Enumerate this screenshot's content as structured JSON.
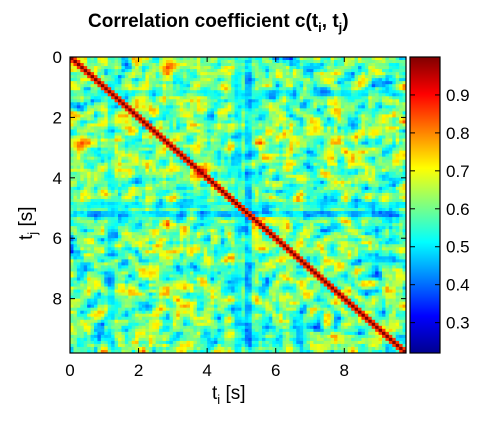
{
  "chart_data": {
    "type": "heatmap",
    "title": "Correlation coefficient c(t",
    "title_sub_1": "i",
    "title_mid": ", t",
    "title_sub_2": "j",
    "title_end": ")",
    "xlabel": "t",
    "xlabel_sub": "i",
    "xlabel_unit": " [s]",
    "ylabel": "t",
    "ylabel_sub": "j",
    "ylabel_unit": " [s]",
    "xlim": [
      0,
      9.8
    ],
    "ylim": [
      0,
      9.8
    ],
    "x_ticks": [
      0,
      2,
      4,
      6,
      8
    ],
    "y_ticks": [
      0,
      2,
      4,
      6,
      8
    ],
    "y_reversed": true,
    "colorbar": {
      "range": [
        0.22,
        1.0
      ],
      "ticks": [
        0.3,
        0.4,
        0.5,
        0.6,
        0.7,
        0.8,
        0.9
      ],
      "colormap": "jet"
    },
    "diagonal_value": 1.0,
    "background_mean": 0.6,
    "low_correlation_bands": [
      {
        "t": 5.2,
        "min_value": 0.3
      },
      {
        "t": 4.9,
        "min_value": 0.4
      },
      {
        "t": 1.2,
        "min_value": 0.45
      }
    ],
    "high_correlation_spots": [
      {
        "ti": 3.8,
        "tj": 3.8,
        "value": 0.95
      }
    ]
  }
}
